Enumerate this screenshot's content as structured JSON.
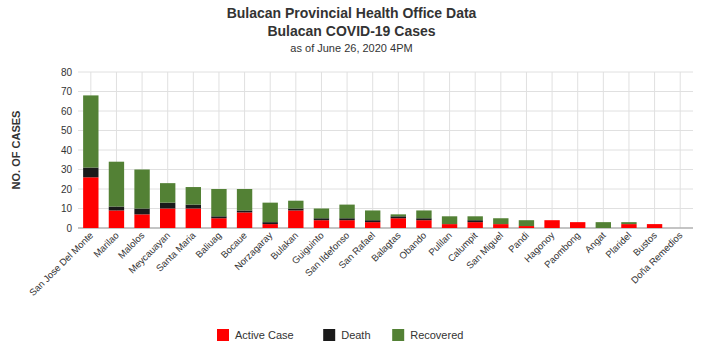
{
  "chart_data": {
    "type": "bar",
    "title": [
      "Bulacan Provincial Health Office Data",
      "Bulacan COVID-19 Cases"
    ],
    "subtitle": "as of June 26, 2020 4PM",
    "y_label": "NO. OF CASES",
    "categories": [
      "San Jose Del Monte",
      "Marilao",
      "Malolos",
      "Meycauayan",
      "Santa Maria",
      "Baliuag",
      "Bocaue",
      "Norzagaray",
      "Bulakan",
      "Guiguinto",
      "San Ildefonso",
      "San Rafael",
      "Balagtas",
      "Obando",
      "Pulilan",
      "Calumpit",
      "San Miguel",
      "Pandi",
      "Hagonoy",
      "Paombong",
      "Angat",
      "Plaridel",
      "Bustos",
      "Doña Remedios"
    ],
    "series": [
      {
        "name": "Active Case",
        "color": "#FF0000",
        "values": [
          26,
          9,
          7,
          10,
          10,
          5,
          8,
          2,
          9,
          4,
          4,
          3,
          5,
          4,
          2,
          3,
          2,
          1,
          4,
          3,
          0,
          2,
          2,
          0
        ]
      },
      {
        "name": "Death",
        "color": "#1a1a1a",
        "values": [
          5,
          2,
          3,
          3,
          2,
          1,
          1,
          1,
          1,
          1,
          1,
          1,
          1,
          1,
          0,
          1,
          0,
          0,
          0,
          0,
          0,
          0,
          0,
          0
        ]
      },
      {
        "name": "Recovered",
        "color": "#538135",
        "values": [
          37,
          23,
          20,
          10,
          9,
          14,
          11,
          10,
          4,
          5,
          7,
          5,
          1,
          4,
          4,
          2,
          3,
          3,
          0,
          0,
          3,
          1,
          0,
          0
        ]
      }
    ],
    "stacked": true,
    "ylim": [
      0,
      80
    ],
    "yticks": [
      0,
      10,
      20,
      30,
      40,
      50,
      60,
      70,
      80
    ],
    "grid": true,
    "legend": "bottom"
  }
}
